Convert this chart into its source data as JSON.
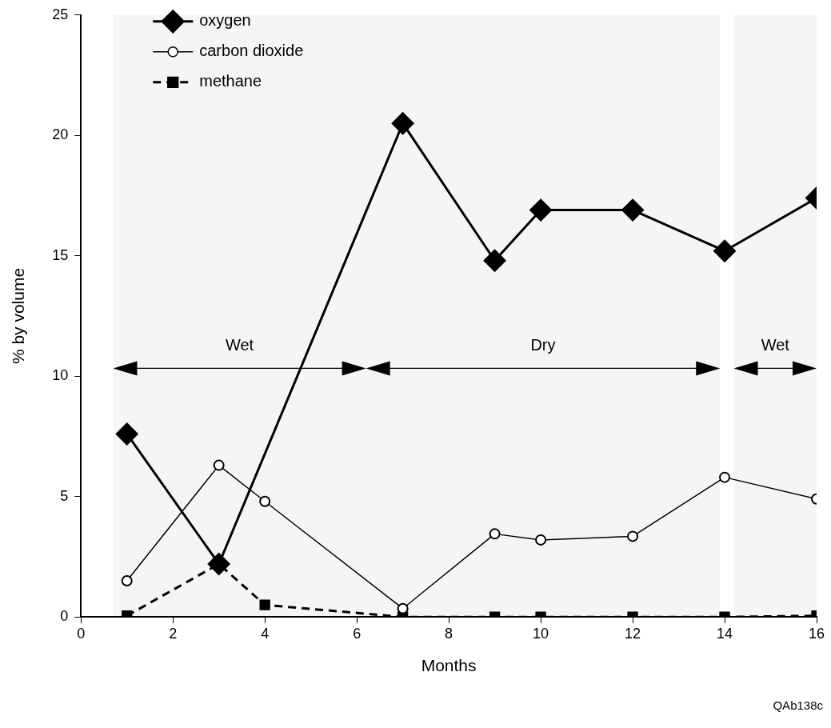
{
  "chart_data": {
    "type": "line",
    "xlabel": "Months",
    "ylabel": "% by volume",
    "xlim": [
      0,
      16
    ],
    "xticks": [
      0,
      2,
      4,
      6,
      8,
      10,
      12,
      14,
      16
    ],
    "ylim": [
      0,
      25
    ],
    "yticks": [
      0,
      5,
      10,
      15,
      20,
      25
    ],
    "grid": false,
    "legend": "top left",
    "series": [
      {
        "name": "oxygen",
        "color": "#000000",
        "marker": "diamond",
        "line_style": "solid",
        "x": [
          1,
          3,
          7,
          9,
          10,
          12,
          14,
          16
        ],
        "values": [
          7.6,
          2.2,
          20.5,
          14.8,
          16.9,
          16.9,
          15.2,
          17.4
        ]
      },
      {
        "name": "carbon dioxide",
        "color": "#000000",
        "marker": "circle",
        "line_style": "solid",
        "x": [
          1,
          3,
          4,
          7,
          9,
          10,
          12,
          14,
          16
        ],
        "values": [
          1.5,
          6.3,
          4.8,
          0.35,
          3.45,
          3.2,
          3.35,
          5.8,
          4.9
        ]
      },
      {
        "name": "methane",
        "color": "#000000",
        "marker": "square",
        "line_style": "dashed",
        "x": [
          1,
          3,
          4,
          7,
          9,
          10,
          12,
          14,
          16
        ],
        "values": [
          0.05,
          2.2,
          0.5,
          0,
          0,
          0,
          0,
          0,
          0.05
        ]
      }
    ],
    "bands": [
      {
        "axis": "x",
        "from": 0.7,
        "to": 6.2,
        "label": "Wet"
      },
      {
        "axis": "x",
        "from": 6.2,
        "to": 13.9,
        "label": "Dry"
      },
      {
        "axis": "x",
        "from": 14.2,
        "to": 16,
        "label": "Wet"
      }
    ],
    "annotations": [
      "QAb138c"
    ]
  }
}
